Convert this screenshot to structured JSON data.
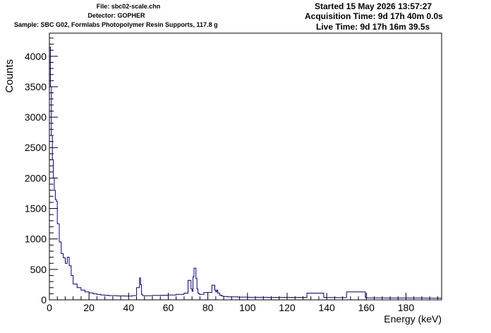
{
  "header": {
    "file": "File: sbc02-scale.chn",
    "detector": "Detector: GOPHER",
    "sample": "Sample: SBC G02, Formlabs Photopolymer Resin Supports, 117.8 g",
    "started": "Started 15 May 2026 13:57:27",
    "acquisition_time": "Acquisition Time: 9d 17h 40m 0.0s",
    "live_time": "Live Time: 9d 17h 16m 39.5s"
  },
  "colors": {
    "line": "#000080",
    "axis": "#000000",
    "background": "#ffffff"
  },
  "chart_data": {
    "type": "line",
    "style": "step-histogram",
    "xlabel": "Energy (keV)",
    "ylabel": "Counts",
    "xlim": [
      0,
      198
    ],
    "ylim": [
      0,
      4380
    ],
    "x_ticks": [
      0,
      20,
      40,
      60,
      80,
      100,
      120,
      140,
      160,
      180
    ],
    "y_ticks": [
      0,
      500,
      1000,
      1500,
      2000,
      2500,
      3000,
      3500,
      4000
    ],
    "grid": false,
    "legend": "none",
    "series": [
      {
        "x": [
          0.5,
          1.0,
          1.5,
          2.0,
          2.5,
          3.0,
          3.5,
          4.0,
          5.0,
          6.0,
          7.0,
          8.0,
          9.0,
          10.0,
          11.0,
          12.0,
          14.0,
          16.0,
          18.0,
          20.0,
          22.0,
          24.0,
          26.0,
          28.0,
          30.0,
          34.0,
          38.0,
          42.0,
          44.0,
          45.5,
          46.0,
          46.5,
          47.0,
          48.0,
          52.0,
          56.0,
          60.0,
          64.0,
          68.0,
          70.0,
          71.5,
          72.0,
          72.5,
          73.0,
          74.0,
          74.5,
          75.0,
          75.5,
          76.0,
          78.0,
          82.0,
          83.5,
          84.0,
          84.5,
          85.0,
          86.0,
          87.0,
          88.0,
          90.0,
          95.0,
          100.0,
          110.0,
          120.0,
          130.0,
          138.5,
          139.0,
          139.5,
          145.0,
          150.0,
          159.5,
          160.0,
          160.5,
          170.0,
          180.0,
          190.0,
          198.0
        ],
        "values": [
          4150,
          3500,
          2700,
          2300,
          2000,
          1800,
          1650,
          1620,
          1250,
          950,
          760,
          690,
          600,
          700,
          560,
          400,
          260,
          200,
          160,
          130,
          115,
          100,
          90,
          80,
          75,
          70,
          65,
          62,
          70,
          200,
          360,
          250,
          90,
          70,
          68,
          72,
          75,
          80,
          90,
          110,
          320,
          180,
          140,
          380,
          520,
          350,
          180,
          110,
          95,
          90,
          120,
          240,
          160,
          130,
          160,
          110,
          75,
          60,
          55,
          50,
          45,
          42,
          40,
          40,
          110,
          40,
          38,
          38,
          36,
          130,
          36,
          35,
          32,
          30,
          30,
          28
        ]
      }
    ]
  }
}
